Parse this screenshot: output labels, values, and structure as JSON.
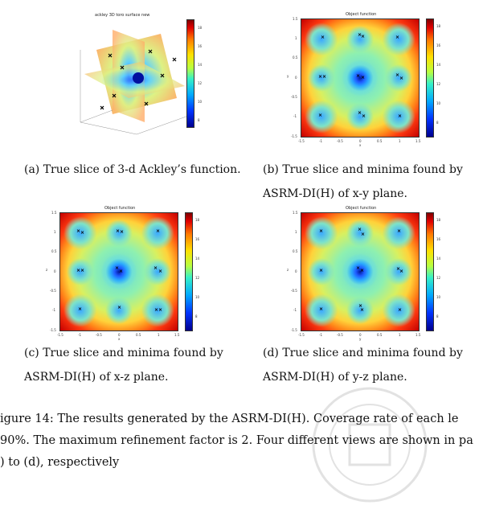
{
  "panels": {
    "a": {
      "title": "ackley 3D toro surface new",
      "caption": "(a) True slice of 3-d Ackley’s function.",
      "cbar_ticks": [
        "18",
        "16",
        "14",
        "12",
        "10",
        "8"
      ]
    },
    "b": {
      "title": "Object function",
      "caption_line1": "(b) True slice and minima found by",
      "caption_line2": "ASRM-DI(H) of x-y plane.",
      "xticks": [
        "-1.5",
        "-1",
        "-0.5",
        "0",
        "0.5",
        "1",
        "1.5"
      ],
      "yticks": [
        "1.5",
        "1",
        "0.5",
        "0",
        "-0.5",
        "-1",
        "-1.5"
      ],
      "xlabel": "x",
      "ylabel": "y",
      "cbar_ticks": [
        "18",
        "16",
        "14",
        "12",
        "10",
        "8"
      ]
    },
    "c": {
      "title": "Object function",
      "caption_line1": "(c) True slice and minima found by",
      "caption_line2": "ASRM-DI(H) of x-z plane.",
      "xticks": [
        "-1.5",
        "-1",
        "-0.5",
        "0",
        "0.5",
        "1",
        "1.5"
      ],
      "yticks": [
        "1.5",
        "1",
        "0.5",
        "0",
        "-0.5",
        "-1",
        "-1.5"
      ],
      "xlabel": "x",
      "ylabel": "z",
      "cbar_ticks": [
        "18",
        "16",
        "14",
        "12",
        "10",
        "8"
      ]
    },
    "d": {
      "title": "Object function",
      "caption_line1": "(d) True slice and minima found by",
      "caption_line2": "ASRM-DI(H) of y-z plane.",
      "xticks": [
        "-1.5",
        "-1",
        "-0.5",
        "0",
        "0.5",
        "1",
        "1.5"
      ],
      "yticks": [
        "1.5",
        "1",
        "0.5",
        "0",
        "-0.5",
        "-1",
        "-1.5"
      ],
      "xlabel": "y",
      "ylabel": "z",
      "cbar_ticks": [
        "18",
        "16",
        "14",
        "12",
        "10",
        "8"
      ]
    }
  },
  "figure_caption": {
    "line1": "igure 14:  The results generated by the ASRM-DI(H). Coverage rate of each le",
    "line2": "90%.  The maximum refinement factor is 2. Four different views are shown in pa",
    "line3": ") to (d), respectively"
  },
  "marker": "×",
  "colors": {
    "low": "#00008f",
    "high": "#800000"
  }
}
